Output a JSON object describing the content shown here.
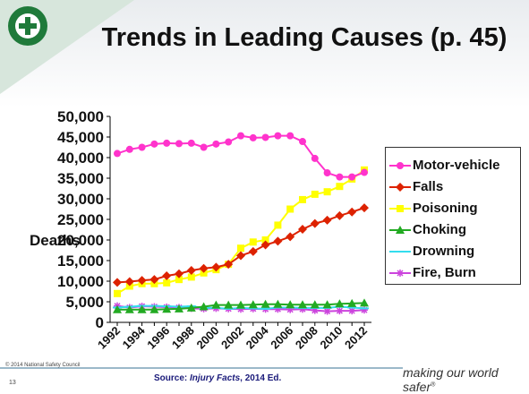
{
  "slide": {
    "title": "Trends in Leading Causes (p. 45)",
    "logo_text": "NATIONAL SAFETY COUNCIL",
    "copyright": "© 2014 National Safety Council",
    "page_number": "13",
    "source_prefix": "Source: ",
    "source_title": "Injury Facts",
    "source_suffix": ", 2014 Ed.",
    "tagline": "making our world safer",
    "tagline_mark": "®",
    "accent_green": "#1f7a3a"
  },
  "chart_data": {
    "type": "line",
    "title": "",
    "xlabel": "",
    "ylabel": "Deaths",
    "ylim": [
      0,
      50000
    ],
    "y_ticks": [
      "0",
      "5,000",
      "10,000",
      "15,000",
      "20,000",
      "25,000",
      "30,000",
      "35,000",
      "40,000",
      "45,000",
      "50,000"
    ],
    "x_tick_labels": [
      "1992",
      "1994",
      "1996",
      "1998",
      "2000",
      "2002",
      "2004",
      "2006",
      "2008",
      "2010",
      "2012"
    ],
    "x": [
      1992,
      1993,
      1994,
      1995,
      1996,
      1997,
      1998,
      1999,
      2000,
      2001,
      2002,
      2003,
      2004,
      2005,
      2006,
      2007,
      2008,
      2009,
      2010,
      2011,
      2012
    ],
    "legend_position": "right",
    "grid": false,
    "series": [
      {
        "name": "Motor-vehicle",
        "color": "#ff33cc",
        "marker": "circle",
        "values": [
          41000,
          42000,
          42500,
          43300,
          43500,
          43400,
          43500,
          42500,
          43300,
          43800,
          45300,
          44800,
          44900,
          45300,
          45300,
          43900,
          39800,
          36300,
          35300,
          35300,
          36400
        ]
      },
      {
        "name": "Falls",
        "color": "#dd2200",
        "marker": "diamond",
        "values": [
          9700,
          9900,
          10200,
          10400,
          11300,
          11800,
          12600,
          13100,
          13400,
          14100,
          16200,
          17200,
          18800,
          19700,
          20800,
          22600,
          24000,
          24800,
          25900,
          26800,
          27800
        ]
      },
      {
        "name": "Poisoning",
        "color": "#ffff00",
        "marker": "square",
        "values": [
          7000,
          8800,
          9400,
          9400,
          9600,
          10400,
          11000,
          12000,
          12800,
          14100,
          18000,
          19500,
          20000,
          23600,
          27500,
          29800,
          31100,
          31700,
          33000,
          34800,
          37000
        ]
      },
      {
        "name": "Choking",
        "color": "#22aa22",
        "marker": "triangle",
        "values": [
          3100,
          3100,
          3100,
          3100,
          3200,
          3300,
          3500,
          3800,
          4200,
          4200,
          4200,
          4300,
          4400,
          4400,
          4300,
          4300,
          4300,
          4300,
          4500,
          4600,
          4700
        ]
      },
      {
        "name": "Drowning",
        "color": "#33ddee",
        "marker": "dash",
        "values": [
          3600,
          3800,
          4000,
          4000,
          3900,
          3800,
          3900,
          3500,
          3500,
          3300,
          3500,
          3400,
          3300,
          3600,
          3600,
          3500,
          3500,
          3500,
          3800,
          3600,
          3400
        ]
      },
      {
        "name": "Fire, Burn",
        "color": "#cc44dd",
        "marker": "star",
        "values": [
          4000,
          3600,
          3900,
          3800,
          3700,
          3600,
          3400,
          3300,
          3400,
          3300,
          3200,
          3300,
          3200,
          3200,
          3100,
          3200,
          2900,
          2700,
          2800,
          2800,
          3000
        ]
      }
    ]
  }
}
